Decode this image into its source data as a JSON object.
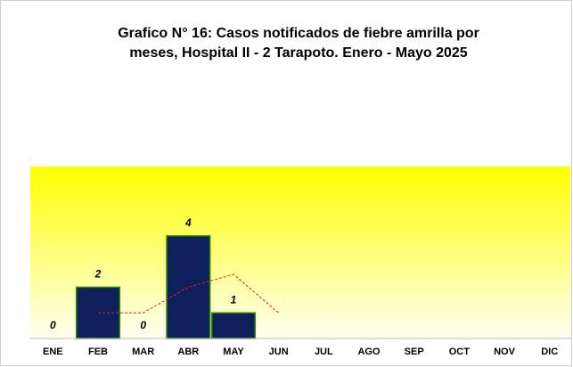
{
  "chart_data": {
    "type": "bar",
    "title": [
      "Grafico N° 16: Casos notificados de fiebre amrilla por",
      "meses, Hospital II - 2 Tarapoto. Enero - Mayo 2025"
    ],
    "categories": [
      "ENE",
      "FEB",
      "MAR",
      "ABR",
      "MAY",
      "JUN",
      "JUL",
      "AGO",
      "SEP",
      "OCT",
      "NOV",
      "DIC"
    ],
    "values": [
      0,
      2,
      0,
      4,
      1,
      null,
      null,
      null,
      null,
      null,
      null,
      null
    ],
    "color": "#0e1f5b",
    "border_color": "#2f8f00",
    "trendline": {
      "color": "#d9262c",
      "values": [
        null,
        1,
        1,
        2,
        2.5,
        1,
        null,
        null,
        null,
        null,
        null,
        null
      ]
    },
    "ylim": [
      0,
      6.7
    ]
  }
}
